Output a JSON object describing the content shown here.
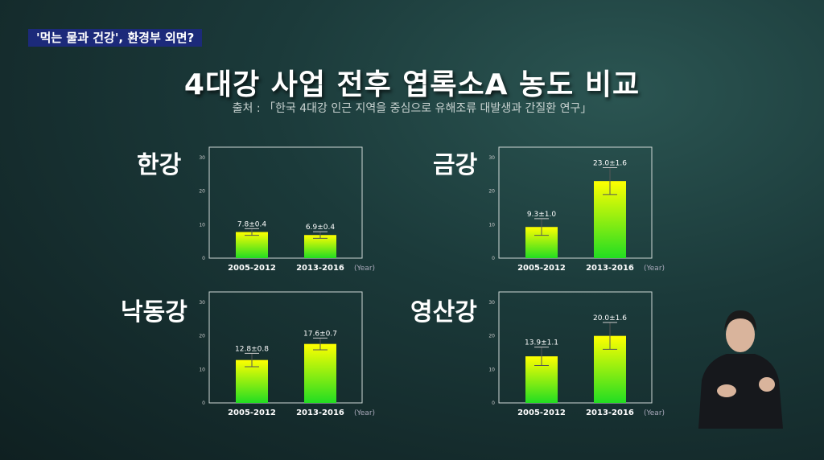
{
  "ticker": "'먹는 물과 건강', 환경부 외면?",
  "title": "4대강 사업 전후 엽록소A 농도 비교",
  "source": "출처 : 「한국 4대강 인근 지역을 중심으로 유해조류 대발생과 간질환 연구」",
  "colors": {
    "bar_top": "#ffff00",
    "bar_bottom": "#22dd22",
    "frame": "#cfd8d6"
  },
  "chart_data": [
    {
      "type": "bar",
      "title": "한강",
      "categories": [
        "2005-2012",
        "2013-2016"
      ],
      "values": [
        7.8,
        6.9
      ],
      "errors": [
        0.4,
        0.4
      ],
      "labels": [
        "7.8±0.4",
        "6.9±0.4"
      ],
      "xunit": "(Year)",
      "ylim": [
        0,
        30
      ],
      "yticks": [
        "0",
        "10",
        "20",
        "30"
      ]
    },
    {
      "type": "bar",
      "title": "금강",
      "categories": [
        "2005-2012",
        "2013-2016"
      ],
      "values": [
        9.3,
        23.0
      ],
      "errors": [
        1.0,
        1.6
      ],
      "labels": [
        "9.3±1.0",
        "23.0±1.6"
      ],
      "xunit": "(Year)",
      "ylim": [
        0,
        30
      ],
      "yticks": [
        "0",
        "10",
        "20",
        "30"
      ]
    },
    {
      "type": "bar",
      "title": "낙동강",
      "categories": [
        "2005-2012",
        "2013-2016"
      ],
      "values": [
        12.8,
        17.6
      ],
      "errors": [
        0.8,
        0.7
      ],
      "labels": [
        "12.8±0.8",
        "17.6±0.7"
      ],
      "xunit": "(Year)",
      "ylim": [
        0,
        30
      ],
      "yticks": [
        "0",
        "10",
        "20",
        "30"
      ]
    },
    {
      "type": "bar",
      "title": "영산강",
      "categories": [
        "2005-2012",
        "2013-2016"
      ],
      "values": [
        13.9,
        20.0
      ],
      "errors": [
        1.1,
        1.6
      ],
      "labels": [
        "13.9±1.1",
        "20.0±1.6"
      ],
      "xunit": "(Year)",
      "ylim": [
        0,
        30
      ],
      "yticks": [
        "0",
        "10",
        "20",
        "30"
      ]
    }
  ]
}
